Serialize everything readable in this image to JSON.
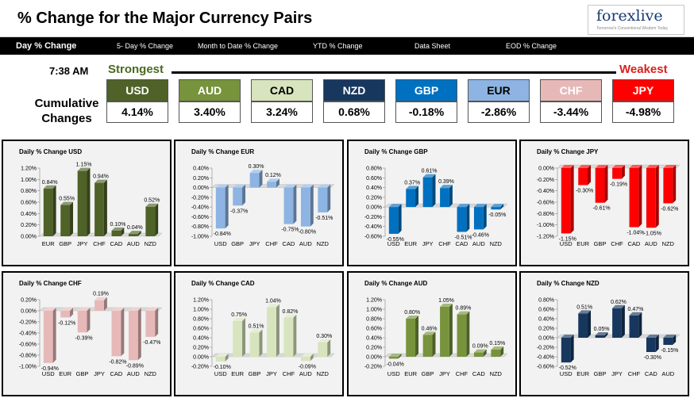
{
  "header": {
    "title": "% Change for the Major Currency Pairs",
    "logo_text": "forexlive",
    "logo_tagline": "Tomorrow's Conventional Wisdom Today"
  },
  "tabs": [
    "Day % Change",
    "5- Day % Change",
    "Month to Date % Change",
    "YTD % Change",
    "Data Sheet",
    "EOD % Change"
  ],
  "summary": {
    "time": "7:38 AM",
    "strongest_label": "Strongest",
    "weakest_label": "Weakest",
    "cumulative_label": "Cumulative Changes",
    "currencies": [
      {
        "code": "USD",
        "value": "4.14%",
        "color": "#4f6228",
        "text_color": "#ffffff"
      },
      {
        "code": "AUD",
        "value": "3.40%",
        "color": "#77933c",
        "text_color": "#ffffff"
      },
      {
        "code": "CAD",
        "value": "3.24%",
        "color": "#d7e4bd",
        "text_color": "#000000"
      },
      {
        "code": "NZD",
        "value": "0.68%",
        "color": "#17375e",
        "text_color": "#ffffff"
      },
      {
        "code": "GBP",
        "value": "-0.18%",
        "color": "#0070c0",
        "text_color": "#ffffff"
      },
      {
        "code": "EUR",
        "value": "-2.86%",
        "color": "#8db4e2",
        "text_color": "#000000"
      },
      {
        "code": "CHF",
        "value": "-3.44%",
        "color": "#e6b9b8",
        "text_color": "#ffffff"
      },
      {
        "code": "JPY",
        "value": "-4.98%",
        "color": "#ff0000",
        "text_color": "#ffffff"
      }
    ]
  },
  "chart_data": [
    {
      "type": "bar",
      "title": "Daily % Change USD",
      "color": "#4f6228",
      "categories": [
        "EUR",
        "GBP",
        "JPY",
        "CHF",
        "CAD",
        "AUD",
        "NZD"
      ],
      "values": [
        0.84,
        0.55,
        1.15,
        0.94,
        0.1,
        0.04,
        0.52
      ],
      "labels": [
        "0.84%",
        "0.55%",
        "1.15%",
        "0.94%",
        "0.10%",
        "0.04%",
        "0.52%"
      ],
      "ylim": [
        0,
        1.2
      ],
      "ticks": [
        0.0,
        0.2,
        0.4,
        0.6,
        0.8,
        1.0,
        1.2
      ],
      "tick_labels": [
        "0.00%",
        "0.20%",
        "0.40%",
        "0.60%",
        "0.80%",
        "1.00%",
        "1.20%"
      ]
    },
    {
      "type": "bar",
      "title": "Daily % Change EUR",
      "color": "#8db4e2",
      "categories": [
        "USD",
        "GBP",
        "JPY",
        "CHF",
        "CAD",
        "AUD",
        "NZD"
      ],
      "values": [
        -0.84,
        -0.37,
        0.3,
        0.12,
        -0.75,
        -0.8,
        -0.51
      ],
      "labels": [
        "-0.84%",
        "-0.37%",
        "0.30%",
        "0.12%",
        "-0.75%",
        "-0.80%",
        "-0.51%"
      ],
      "ylim": [
        -1.0,
        0.4
      ],
      "ticks": [
        0.4,
        0.2,
        0.0,
        -0.2,
        -0.4,
        -0.6,
        -0.8,
        -1.0
      ],
      "tick_labels": [
        "0.40%",
        "0.20%",
        "0.00%",
        "-0.20%",
        "-0.40%",
        "-0.60%",
        "-0.80%",
        "-1.00%"
      ]
    },
    {
      "type": "bar",
      "title": "Daily % Change GBP",
      "color": "#0070c0",
      "categories": [
        "USD",
        "EUR",
        "JPY",
        "CHF",
        "CAD",
        "AUD",
        "NZD"
      ],
      "values": [
        -0.55,
        0.37,
        0.61,
        0.39,
        -0.51,
        -0.46,
        -0.05
      ],
      "labels": [
        "-0.55%",
        "0.37%",
        "0.61%",
        "0.39%",
        "-0.51%",
        "-0.46%",
        "-0.05%"
      ],
      "ylim": [
        -0.6,
        0.8
      ],
      "ticks": [
        0.8,
        0.6,
        0.4,
        0.2,
        0.0,
        -0.2,
        -0.4,
        -0.6
      ],
      "tick_labels": [
        "0.80%",
        "0.60%",
        "0.40%",
        "0.20%",
        "0.00%",
        "-0.20%",
        "-0.40%",
        "-0.60%"
      ]
    },
    {
      "type": "bar",
      "title": "Daily % Change JPY",
      "color": "#ff0000",
      "categories": [
        "USD",
        "EUR",
        "GBP",
        "CHF",
        "CAD",
        "AUD",
        "NZD"
      ],
      "values": [
        -1.15,
        -0.3,
        -0.61,
        -0.19,
        -1.04,
        -1.05,
        -0.62
      ],
      "labels": [
        "-1.15%",
        "-0.30%",
        "-0.61%",
        "-0.19%",
        "-1.04%",
        "-1.05%",
        "-0.62%"
      ],
      "ylim": [
        -1.2,
        0.0
      ],
      "ticks": [
        0.0,
        -0.2,
        -0.4,
        -0.6,
        -0.8,
        -1.0,
        -1.2
      ],
      "tick_labels": [
        "0.00%",
        "-0.20%",
        "-0.40%",
        "-0.60%",
        "-0.80%",
        "-1.00%",
        "-1.20%"
      ]
    },
    {
      "type": "bar",
      "title": "Daily % Change CHF",
      "color": "#e6b9b8",
      "categories": [
        "USD",
        "EUR",
        "GBP",
        "JPY",
        "CAD",
        "AUD",
        "NZD"
      ],
      "values": [
        -0.94,
        -0.12,
        -0.39,
        0.19,
        -0.82,
        -0.89,
        -0.47
      ],
      "labels": [
        "-0.94%",
        "-0.12%",
        "-0.39%",
        "0.19%",
        "-0.82%",
        "-0.89%",
        "-0.47%"
      ],
      "ylim": [
        -1.0,
        0.2
      ],
      "ticks": [
        0.2,
        0.0,
        -0.2,
        -0.4,
        -0.6,
        -0.8,
        -1.0
      ],
      "tick_labels": [
        "0.20%",
        "0.00%",
        "-0.20%",
        "-0.40%",
        "-0.60%",
        "-0.80%",
        "-1.00%"
      ]
    },
    {
      "type": "bar",
      "title": "Daily % Change CAD",
      "color": "#d7e4bd",
      "categories": [
        "USD",
        "EUR",
        "GBP",
        "JPY",
        "CHF",
        "AUD",
        "NZD"
      ],
      "values": [
        -0.1,
        0.75,
        0.51,
        1.04,
        0.82,
        -0.09,
        0.3
      ],
      "labels": [
        "-0.10%",
        "0.75%",
        "0.51%",
        "1.04%",
        "0.82%",
        "-0.09%",
        "0.30%"
      ],
      "ylim": [
        -0.2,
        1.2
      ],
      "ticks": [
        1.2,
        1.0,
        0.8,
        0.6,
        0.4,
        0.2,
        0.0,
        -0.2
      ],
      "tick_labels": [
        "1.20%",
        "1.00%",
        "0.80%",
        "0.60%",
        "0.40%",
        "0.20%",
        "0.00%",
        "-0.20%"
      ]
    },
    {
      "type": "bar",
      "title": "Daily % Change AUD",
      "color": "#77933c",
      "categories": [
        "USD",
        "EUR",
        "GBP",
        "JPY",
        "CHF",
        "CAD",
        "NZD"
      ],
      "values": [
        -0.04,
        0.8,
        0.46,
        1.05,
        0.89,
        0.09,
        0.15
      ],
      "labels": [
        "-0.04%",
        "0.80%",
        "0.46%",
        "1.05%",
        "0.89%",
        "0.09%",
        "0.15%"
      ],
      "ylim": [
        -0.2,
        1.2
      ],
      "ticks": [
        1.2,
        1.0,
        0.8,
        0.6,
        0.4,
        0.2,
        0.0,
        -0.2
      ],
      "tick_labels": [
        "1.20%",
        "1.00%",
        "0.80%",
        "0.60%",
        "0.40%",
        "0.20%",
        "0.00%",
        "-0.20%"
      ]
    },
    {
      "type": "bar",
      "title": "Daily % Change NZD",
      "color": "#17375e",
      "categories": [
        "USD",
        "EUR",
        "GBP",
        "JPY",
        "CHF",
        "CAD",
        "AUD"
      ],
      "values": [
        -0.52,
        0.51,
        0.05,
        0.62,
        0.47,
        -0.3,
        -0.15
      ],
      "labels": [
        "-0.52%",
        "0.51%",
        "0.05%",
        "0.62%",
        "0.47%",
        "-0.30%",
        "-0.15%"
      ],
      "ylim": [
        -0.6,
        0.8
      ],
      "ticks": [
        0.8,
        0.6,
        0.4,
        0.2,
        0.0,
        -0.2,
        -0.4,
        -0.6
      ],
      "tick_labels": [
        "0.80%",
        "0.60%",
        "0.40%",
        "0.20%",
        "0.00%",
        "-0.20%",
        "-0.40%",
        "-0.60%"
      ]
    }
  ]
}
